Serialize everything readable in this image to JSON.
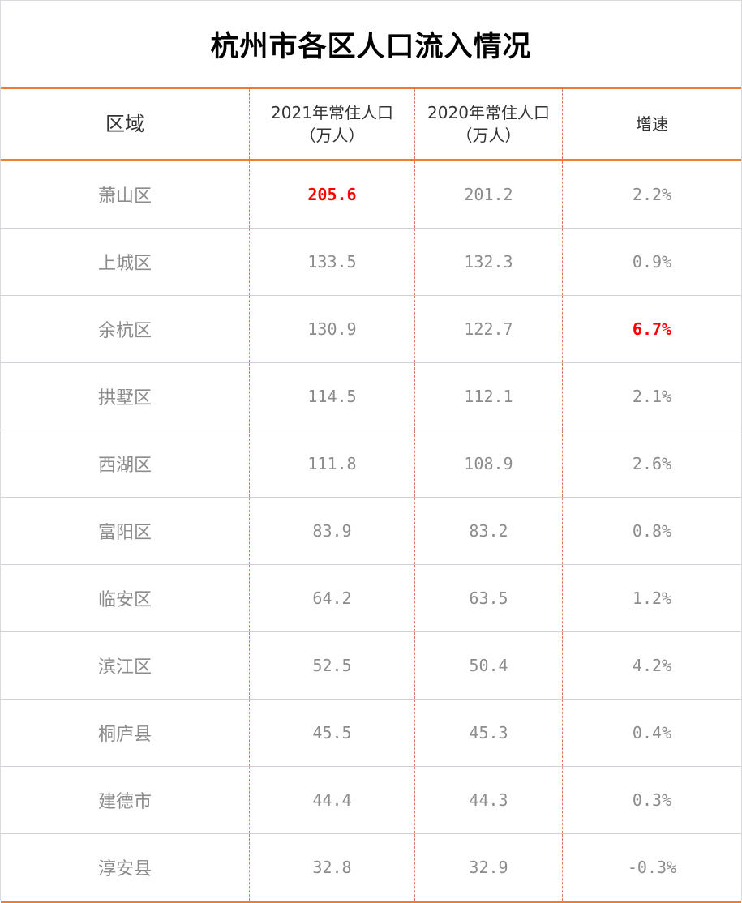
{
  "title": "杭州市各区人口流入情况",
  "headers": {
    "region": "区域",
    "pop2021_line1": "2021年常住人口",
    "pop2021_line2": "（万人）",
    "pop2020_line1": "2020年常住人口",
    "pop2020_line2": "（万人）",
    "growth": "增速"
  },
  "highlight_color": "#ff0000",
  "accent_color": "#ed7d31",
  "rows": [
    {
      "region": "萧山区",
      "pop2021": "205.6",
      "pop2020": "201.2",
      "growth": "2.2%"
    },
    {
      "region": "上城区",
      "pop2021": "133.5",
      "pop2020": "132.3",
      "growth": "0.9%"
    },
    {
      "region": "余杭区",
      "pop2021": "130.9",
      "pop2020": "122.7",
      "growth": "6.7%"
    },
    {
      "region": "拱墅区",
      "pop2021": "114.5",
      "pop2020": "112.1",
      "growth": "2.1%"
    },
    {
      "region": "西湖区",
      "pop2021": "111.8",
      "pop2020": "108.9",
      "growth": "2.6%"
    },
    {
      "region": "富阳区",
      "pop2021": "83.9",
      "pop2020": "83.2",
      "growth": "0.8%"
    },
    {
      "region": "临安区",
      "pop2021": "64.2",
      "pop2020": "63.5",
      "growth": "1.2%"
    },
    {
      "region": "滨江区",
      "pop2021": "52.5",
      "pop2020": "50.4",
      "growth": "4.2%"
    },
    {
      "region": "桐庐县",
      "pop2021": "45.5",
      "pop2020": "45.3",
      "growth": "0.4%"
    },
    {
      "region": "建德市",
      "pop2021": "44.4",
      "pop2020": "44.3",
      "growth": "0.3%"
    },
    {
      "region": "淳安县",
      "pop2021": "32.8",
      "pop2020": "32.9",
      "growth": "-0.3%"
    }
  ]
}
